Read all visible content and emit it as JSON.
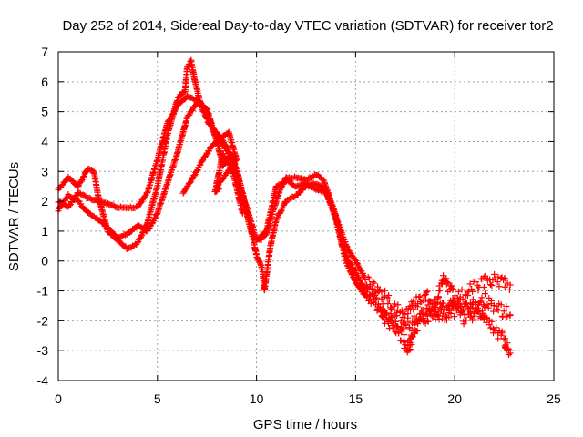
{
  "chart_data": {
    "type": "scatter",
    "title": "Day 252 of 2014, Sidereal Day-to-day VTEC variation (SDTVAR) for receiver tor2",
    "xlabel": "GPS time / hours",
    "ylabel": "SDTVAR / TECUs",
    "xlim": [
      0,
      25
    ],
    "ylim": [
      -4,
      7
    ],
    "xticks": [
      0,
      5,
      10,
      15,
      20,
      25
    ],
    "yticks": [
      -4,
      -3,
      -2,
      -1,
      0,
      1,
      2,
      3,
      4,
      5,
      6,
      7
    ],
    "grid": true,
    "marker": "+",
    "color": "#ff0000",
    "series": [
      {
        "name": "track-a",
        "points": [
          [
            0.0,
            2.4
          ],
          [
            0.5,
            2.8
          ],
          [
            1.0,
            2.5
          ],
          [
            1.5,
            3.1
          ],
          [
            1.8,
            3.0
          ],
          [
            2.0,
            2.2
          ],
          [
            2.5,
            1.0
          ],
          [
            3.0,
            0.7
          ],
          [
            3.5,
            0.4
          ],
          [
            4.0,
            0.6
          ],
          [
            4.5,
            1.3
          ],
          [
            5.0,
            2.5
          ],
          [
            5.5,
            4.2
          ],
          [
            6.0,
            5.4
          ],
          [
            6.2,
            5.6
          ],
          [
            6.4,
            5.7
          ],
          [
            6.5,
            6.5
          ],
          [
            6.7,
            6.7
          ],
          [
            6.9,
            6.0
          ],
          [
            7.2,
            5.2
          ],
          [
            7.6,
            4.6
          ],
          [
            8.0,
            4.3
          ],
          [
            8.5,
            3.8
          ],
          [
            9.0,
            3.0
          ],
          [
            9.3,
            2.2
          ],
          [
            9.6,
            1.3
          ],
          [
            9.9,
            0.8
          ],
          [
            10.2,
            0.7
          ],
          [
            10.5,
            0.9
          ],
          [
            10.8,
            1.6
          ],
          [
            11.2,
            2.4
          ],
          [
            11.5,
            2.8
          ],
          [
            12.0,
            2.8
          ],
          [
            12.5,
            2.7
          ],
          [
            13.0,
            2.9
          ],
          [
            13.4,
            2.7
          ],
          [
            13.8,
            1.9
          ],
          [
            14.2,
            1.1
          ],
          [
            14.6,
            0.4
          ],
          [
            15.0,
            0.0
          ],
          [
            15.5,
            -0.6
          ],
          [
            16.0,
            -0.9
          ],
          [
            16.5,
            -1.2
          ],
          [
            17.0,
            -1.5
          ],
          [
            17.5,
            -1.8
          ],
          [
            18.0,
            -1.4
          ],
          [
            18.5,
            -1.1
          ],
          [
            19.0,
            -1.4
          ],
          [
            19.5,
            -0.6
          ],
          [
            20.0,
            -1.3
          ],
          [
            20.5,
            -1.1
          ],
          [
            21.0,
            -0.9
          ],
          [
            21.5,
            -0.7
          ],
          [
            22.0,
            -0.6
          ],
          [
            22.5,
            -0.7
          ],
          [
            22.8,
            -0.8
          ]
        ]
      },
      {
        "name": "track-b",
        "points": [
          [
            0.0,
            1.7
          ],
          [
            0.5,
            2.2
          ],
          [
            1.0,
            2.0
          ],
          [
            1.5,
            1.6
          ],
          [
            2.0,
            1.4
          ],
          [
            2.5,
            1.1
          ],
          [
            3.0,
            0.8
          ],
          [
            3.5,
            0.9
          ],
          [
            4.0,
            1.2
          ],
          [
            4.5,
            1.0
          ],
          [
            5.0,
            1.6
          ],
          [
            5.5,
            2.6
          ],
          [
            6.0,
            3.6
          ],
          [
            6.5,
            4.8
          ],
          [
            7.0,
            5.3
          ],
          [
            7.3,
            5.2
          ],
          [
            7.6,
            4.8
          ],
          [
            7.9,
            4.2
          ],
          [
            8.2,
            4.0
          ],
          [
            8.5,
            3.7
          ],
          [
            8.8,
            3.5
          ],
          [
            9.1,
            2.8
          ],
          [
            9.4,
            2.0
          ],
          [
            9.7,
            1.1
          ],
          [
            10.0,
            0.2
          ],
          [
            10.3,
            -0.3
          ],
          [
            10.4,
            -1.0
          ],
          [
            10.7,
            0.5
          ],
          [
            11.0,
            1.4
          ],
          [
            11.5,
            2.0
          ],
          [
            12.0,
            2.2
          ],
          [
            12.5,
            2.5
          ],
          [
            13.0,
            2.6
          ],
          [
            13.5,
            2.4
          ],
          [
            14.0,
            1.5
          ],
          [
            14.5,
            0.2
          ],
          [
            15.0,
            -0.4
          ],
          [
            15.5,
            -1.0
          ],
          [
            16.0,
            -1.4
          ],
          [
            16.5,
            -1.7
          ],
          [
            17.0,
            -2.0
          ],
          [
            17.5,
            -2.2
          ],
          [
            18.0,
            -2.0
          ],
          [
            18.5,
            -1.6
          ],
          [
            19.0,
            -1.8
          ],
          [
            19.5,
            -1.5
          ],
          [
            20.0,
            -1.7
          ],
          [
            20.5,
            -1.5
          ],
          [
            21.0,
            -1.9
          ],
          [
            21.5,
            -1.3
          ],
          [
            22.0,
            -1.5
          ],
          [
            22.5,
            -1.7
          ],
          [
            22.8,
            -1.8
          ]
        ]
      },
      {
        "name": "track-c",
        "points": [
          [
            0.0,
            2.0
          ],
          [
            0.5,
            1.8
          ],
          [
            1.0,
            2.3
          ],
          [
            1.5,
            2.1
          ],
          [
            2.0,
            2.0
          ],
          [
            2.5,
            1.9
          ],
          [
            3.0,
            1.8
          ],
          [
            3.5,
            1.8
          ],
          [
            4.0,
            1.8
          ],
          [
            4.5,
            2.3
          ],
          [
            5.0,
            3.4
          ],
          [
            5.5,
            4.6
          ],
          [
            6.0,
            5.2
          ],
          [
            6.5,
            5.5
          ],
          [
            7.0,
            5.4
          ],
          [
            7.5,
            5.1
          ],
          [
            8.0,
            4.0
          ],
          [
            8.3,
            3.2
          ],
          [
            8.6,
            3.5
          ],
          [
            9.0,
            2.7
          ],
          [
            9.5,
            1.8
          ],
          [
            10.0,
            0.7
          ],
          [
            10.5,
            1.0
          ],
          [
            11.0,
            2.5
          ],
          [
            11.5,
            2.7
          ],
          [
            12.0,
            2.5
          ],
          [
            12.5,
            2.6
          ],
          [
            13.0,
            2.4
          ],
          [
            13.5,
            2.3
          ],
          [
            14.0,
            1.4
          ],
          [
            14.5,
            0.0
          ],
          [
            15.0,
            -0.7
          ],
          [
            15.5,
            -1.2
          ],
          [
            16.0,
            -1.5
          ],
          [
            16.5,
            -1.9
          ],
          [
            17.0,
            -2.3
          ],
          [
            17.4,
            -2.6
          ],
          [
            17.6,
            -3.0
          ],
          [
            18.0,
            -2.2
          ],
          [
            18.5,
            -2.0
          ],
          [
            19.0,
            -1.6
          ],
          [
            19.5,
            -1.9
          ],
          [
            20.0,
            -1.3
          ],
          [
            20.5,
            -1.9
          ],
          [
            21.0,
            -1.4
          ],
          [
            21.5,
            -2.0
          ],
          [
            22.0,
            -2.3
          ],
          [
            22.5,
            -2.6
          ],
          [
            22.8,
            -3.0
          ]
        ]
      },
      {
        "name": "track-d",
        "points": [
          [
            6.3,
            2.3
          ],
          [
            6.8,
            2.8
          ],
          [
            7.3,
            3.4
          ],
          [
            7.8,
            3.9
          ],
          [
            8.2,
            4.1
          ],
          [
            8.6,
            4.3
          ],
          [
            9.0,
            3.4
          ],
          [
            8.0,
            2.5
          ],
          [
            8.1,
            2.4
          ],
          [
            7.9,
            2.3
          ],
          [
            8.3,
            3.6
          ],
          [
            8.8,
            3.0
          ],
          [
            9.3,
            1.6
          ]
        ]
      }
    ]
  }
}
